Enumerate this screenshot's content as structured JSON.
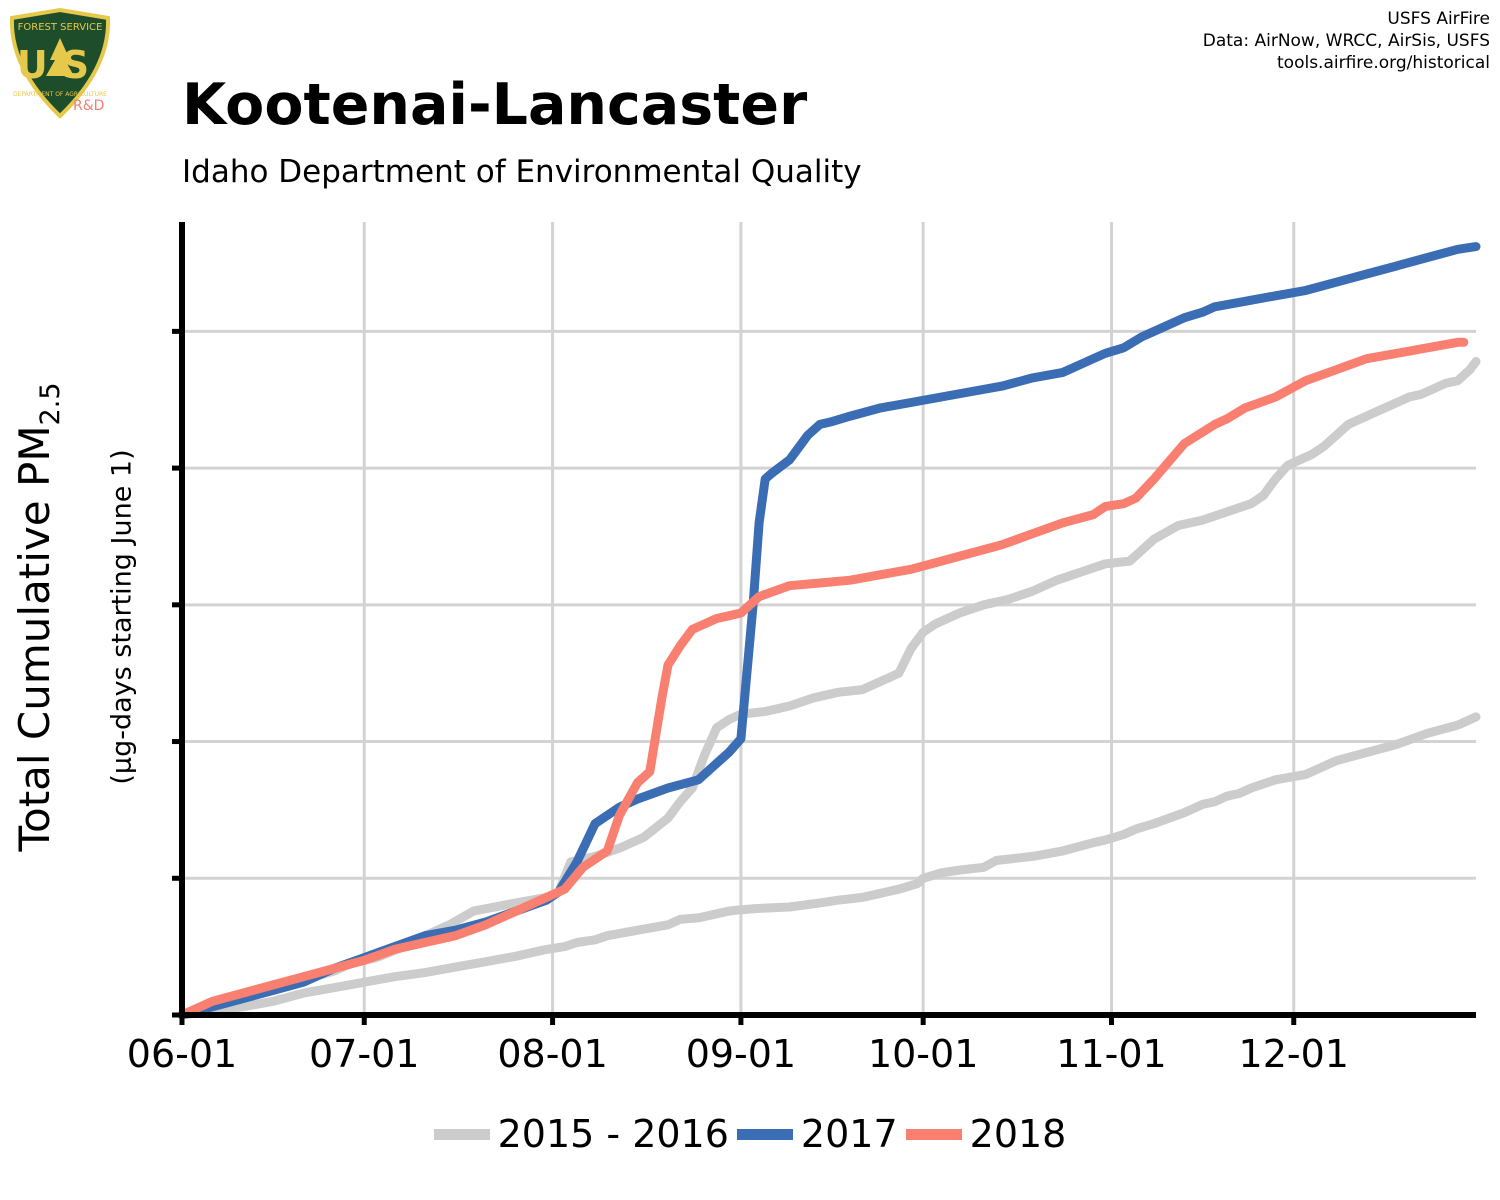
{
  "credits": {
    "line1": "USFS AirFire",
    "line2": "Data: AirNow, WRCC, AirSis, USFS",
    "line3": "tools.airfire.org/historical"
  },
  "logo": {
    "top_text": "FOREST SERVICE",
    "letters": "US",
    "bottom_text": "DEPARTMENT OF AGRICULTURE",
    "badge": "R&D"
  },
  "chart_data": {
    "type": "line",
    "title": "Kootenai-Lancaster",
    "subtitle": "Idaho Department of Environmental Quality",
    "ylabel": "Total Cumulative PM",
    "ylabel_subscript": "2.5",
    "ylabel_secondary": "(µg-days starting June 1)",
    "xlabel": "",
    "x_tick_labels": [
      "06-01",
      "07-01",
      "08-01",
      "09-01",
      "10-01",
      "11-01",
      "12-01"
    ],
    "x_tick_days": [
      0,
      30,
      61,
      92,
      122,
      153,
      183
    ],
    "xlim_days": [
      0,
      213
    ],
    "y_tick_labels_shown": false,
    "ylim": [
      0,
      2900
    ],
    "y_gridlines": [
      0,
      500,
      1000,
      1500,
      2000,
      2500
    ],
    "grid": true,
    "legend_position": "bottom",
    "series": [
      {
        "name": "2015 - 2016",
        "color": "#cccccc",
        "x": [
          0,
          5,
          10,
          15,
          20,
          25,
          28,
          32,
          36,
          40,
          44,
          48,
          55,
          60,
          61,
          62,
          64,
          68,
          72,
          76,
          80,
          82,
          84,
          86,
          88,
          90,
          92,
          96,
          100,
          104,
          108,
          112,
          114,
          116,
          118,
          120,
          122,
          124,
          128,
          132,
          136,
          140,
          144,
          148,
          152,
          156,
          158,
          160,
          164,
          168,
          172,
          176,
          178,
          180,
          182,
          184,
          186,
          188,
          190,
          192,
          196,
          198,
          200,
          202,
          204,
          206,
          208,
          210,
          212,
          213
        ],
        "values": [
          0,
          30,
          70,
          100,
          130,
          160,
          190,
          210,
          245,
          290,
          330,
          380,
          410,
          430,
          435,
          450,
          560,
          580,
          610,
          650,
          720,
          780,
          830,
          950,
          1050,
          1080,
          1100,
          1110,
          1130,
          1160,
          1180,
          1190,
          1210,
          1230,
          1250,
          1340,
          1400,
          1430,
          1470,
          1500,
          1520,
          1550,
          1590,
          1620,
          1650,
          1660,
          1700,
          1740,
          1790,
          1810,
          1840,
          1870,
          1900,
          1960,
          2010,
          2030,
          2050,
          2080,
          2120,
          2160,
          2200,
          2220,
          2240,
          2260,
          2270,
          2290,
          2310,
          2320,
          2360,
          2390
        ]
      },
      {
        "name": "2015 - 2016",
        "color": "#cccccc",
        "x": [
          0,
          5,
          10,
          15,
          20,
          25,
          30,
          35,
          40,
          45,
          50,
          55,
          60,
          63,
          65,
          68,
          70,
          75,
          80,
          82,
          85,
          88,
          90,
          92,
          95,
          100,
          105,
          108,
          110,
          112,
          115,
          118,
          121,
          122,
          125,
          128,
          130,
          132,
          134,
          136,
          140,
          145,
          150,
          152,
          155,
          157,
          160,
          165,
          168,
          170,
          172,
          174,
          176,
          180,
          185,
          190,
          195,
          200,
          205,
          210,
          213
        ],
        "values": [
          0,
          15,
          30,
          50,
          80,
          100,
          120,
          140,
          155,
          175,
          195,
          215,
          240,
          250,
          265,
          275,
          290,
          310,
          330,
          350,
          355,
          370,
          380,
          385,
          390,
          395,
          410,
          420,
          425,
          430,
          445,
          460,
          480,
          500,
          520,
          530,
          535,
          540,
          565,
          570,
          580,
          600,
          630,
          640,
          660,
          680,
          700,
          740,
          770,
          780,
          800,
          810,
          830,
          860,
          880,
          930,
          960,
          990,
          1030,
          1060,
          1090
        ]
      },
      {
        "name": "2017",
        "color": "#3a6db4",
        "x": [
          0,
          5,
          10,
          15,
          20,
          25,
          30,
          35,
          40,
          45,
          50,
          55,
          60,
          62,
          65,
          68,
          72,
          75,
          80,
          85,
          88,
          90,
          92,
          94,
          95,
          96,
          97,
          100,
          103,
          105,
          107,
          110,
          115,
          120,
          125,
          130,
          135,
          140,
          145,
          148,
          150,
          152,
          155,
          158,
          160,
          162,
          165,
          168,
          170,
          175,
          180,
          185,
          190,
          195,
          200,
          205,
          210,
          213
        ],
        "values": [
          0,
          30,
          60,
          90,
          120,
          170,
          210,
          250,
          290,
          310,
          340,
          380,
          420,
          450,
          560,
          700,
          760,
          790,
          830,
          860,
          920,
          960,
          1010,
          1500,
          1800,
          1960,
          1980,
          2030,
          2120,
          2160,
          2170,
          2190,
          2220,
          2240,
          2260,
          2280,
          2300,
          2330,
          2350,
          2380,
          2400,
          2420,
          2440,
          2480,
          2500,
          2520,
          2550,
          2570,
          2590,
          2610,
          2630,
          2650,
          2680,
          2710,
          2740,
          2770,
          2800,
          2810
        ]
      },
      {
        "name": "2018",
        "color": "#f98070",
        "x": [
          0,
          5,
          10,
          15,
          20,
          25,
          30,
          35,
          40,
          45,
          50,
          55,
          60,
          63,
          66,
          70,
          72,
          75,
          77,
          79,
          80,
          82,
          84,
          86,
          88,
          90,
          92,
          95,
          100,
          105,
          110,
          115,
          120,
          125,
          130,
          135,
          140,
          145,
          150,
          152,
          155,
          157,
          160,
          165,
          170,
          172,
          175,
          180,
          185,
          190,
          195,
          200,
          205,
          210,
          211
        ],
        "values": [
          0,
          50,
          80,
          110,
          140,
          170,
          200,
          240,
          265,
          290,
          330,
          380,
          430,
          460,
          540,
          600,
          730,
          850,
          890,
          1160,
          1280,
          1350,
          1410,
          1430,
          1450,
          1460,
          1470,
          1530,
          1570,
          1580,
          1590,
          1610,
          1630,
          1660,
          1690,
          1720,
          1760,
          1800,
          1830,
          1860,
          1870,
          1890,
          1960,
          2090,
          2160,
          2180,
          2220,
          2260,
          2320,
          2360,
          2400,
          2420,
          2440,
          2460,
          2460
        ]
      }
    ]
  }
}
